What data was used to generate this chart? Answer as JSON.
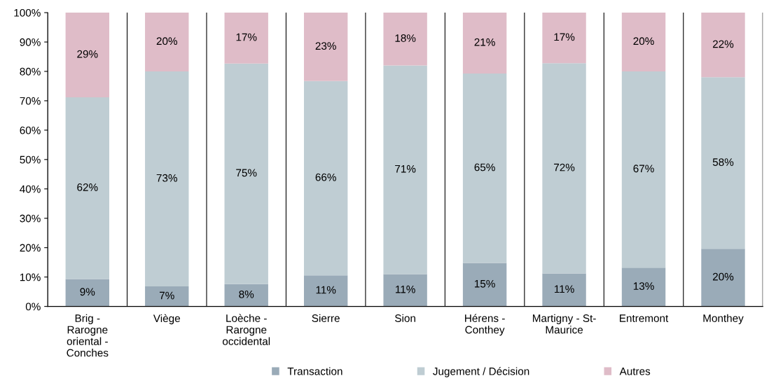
{
  "chart_data": {
    "type": "bar",
    "stacked": true,
    "categories": [
      "Brig -\nRarogne\noriental -\nConches",
      "Viège",
      "Loèche -\nRarogne\noccidental",
      "Sierre",
      "Sion",
      "Hérens -\nConthey",
      "Martigny - St-\nMaurice",
      "Entremont",
      "Monthey"
    ],
    "series": [
      {
        "name": "Transaction",
        "color": "#9aabb8",
        "values": [
          9.3,
          6.8,
          7.6,
          10.6,
          11,
          14.8,
          11.2,
          13.2,
          19.6
        ],
        "value_labels": [
          "9%",
          "7%",
          "8%",
          "11%",
          "11%",
          "15%",
          "11%",
          "13%",
          "20%"
        ]
      },
      {
        "name": "Jugement / Décision",
        "color": "#bfcdd3",
        "values": [
          61.9,
          73.2,
          75.1,
          66.1,
          71,
          64.5,
          71.6,
          66.8,
          58.4
        ],
        "value_labels": [
          "62%",
          "73%",
          "75%",
          "66%",
          "71%",
          "65%",
          "72%",
          "67%",
          "58%"
        ]
      },
      {
        "name": "Autres",
        "color": "#dfbcc8",
        "values": [
          28.8,
          20,
          17.3,
          23.3,
          18,
          20.7,
          17.2,
          20,
          22
        ],
        "value_labels": [
          "29%",
          "20%",
          "17%",
          "23%",
          "18%",
          "21%",
          "17%",
          "20%",
          "22%"
        ]
      }
    ],
    "ylim": [
      0,
      100
    ],
    "yticks": [
      {
        "value": 0,
        "label": "0%"
      },
      {
        "value": 10,
        "label": "10%"
      },
      {
        "value": 20,
        "label": "20%"
      },
      {
        "value": 30,
        "label": "30%"
      },
      {
        "value": 40,
        "label": "40%"
      },
      {
        "value": 50,
        "label": "50%"
      },
      {
        "value": 60,
        "label": "60%"
      },
      {
        "value": 70,
        "label": "70%"
      },
      {
        "value": 80,
        "label": "80%"
      },
      {
        "value": 90,
        "label": "90%"
      },
      {
        "value": 100,
        "label": "100%"
      }
    ],
    "grid": "x",
    "legend": "bottom"
  }
}
